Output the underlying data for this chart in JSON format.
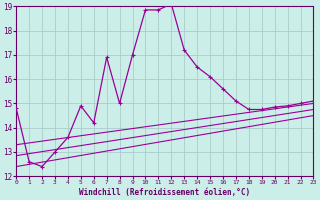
{
  "xlabel": "Windchill (Refroidissement éolien,°C)",
  "xlim": [
    0,
    23
  ],
  "ylim": [
    12,
    19
  ],
  "yticks": [
    12,
    13,
    14,
    15,
    16,
    17,
    18,
    19
  ],
  "xticks": [
    0,
    1,
    2,
    3,
    4,
    5,
    6,
    7,
    8,
    9,
    10,
    11,
    12,
    13,
    14,
    15,
    16,
    17,
    18,
    19,
    20,
    21,
    22,
    23
  ],
  "bg_color": "#cceee8",
  "line_color": "#990099",
  "grid_color": "#aacccc",
  "main_line": [
    [
      0,
      14.8
    ],
    [
      1,
      12.6
    ],
    [
      2,
      12.4
    ],
    [
      3,
      13.0
    ],
    [
      4,
      13.6
    ],
    [
      5,
      14.9
    ],
    [
      6,
      14.2
    ],
    [
      7,
      16.9
    ],
    [
      8,
      15.0
    ],
    [
      9,
      17.0
    ],
    [
      10,
      18.85
    ],
    [
      11,
      18.85
    ],
    [
      12,
      19.1
    ],
    [
      13,
      17.2
    ],
    [
      14,
      16.5
    ],
    [
      15,
      16.1
    ],
    [
      16,
      15.6
    ],
    [
      17,
      15.1
    ],
    [
      18,
      14.75
    ],
    [
      19,
      14.75
    ],
    [
      20,
      14.85
    ],
    [
      21,
      14.9
    ],
    [
      22,
      15.0
    ],
    [
      23,
      15.1
    ]
  ],
  "line2": [
    [
      0,
      13.3
    ],
    [
      23,
      15.0
    ]
  ],
  "line3": [
    [
      0,
      12.85
    ],
    [
      23,
      14.75
    ]
  ],
  "line4": [
    [
      0,
      12.4
    ],
    [
      23,
      14.5
    ]
  ]
}
